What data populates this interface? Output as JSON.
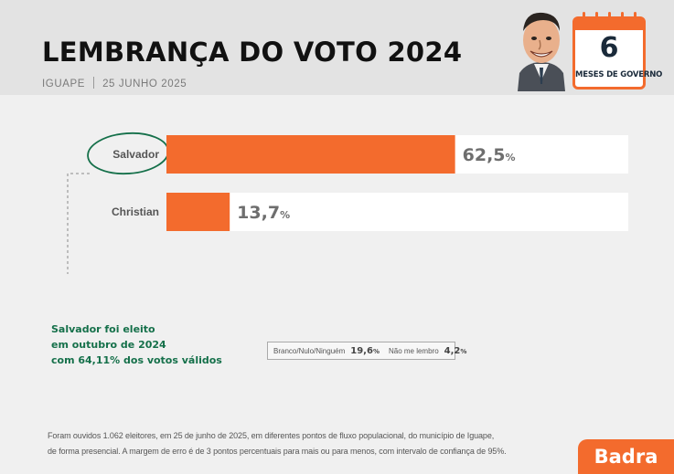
{
  "header": {
    "title": "LEMBRANÇA DO VOTO 2024",
    "location": "IGUAPE",
    "date": "25 JUNHO 2025"
  },
  "calendar": {
    "number": "6",
    "label": "MESES DE GOVERNO"
  },
  "chart_data": {
    "type": "bar",
    "orientation": "horizontal",
    "categories": [
      "Salvador",
      "Christian"
    ],
    "values": [
      62.5,
      13.7
    ],
    "value_labels": [
      "62,5",
      "13,7"
    ],
    "unit": "%",
    "xlim": [
      0,
      100
    ],
    "bar_color": "#f36b2d",
    "track_color": "#ffffff",
    "highlight": "Salvador"
  },
  "annotation": {
    "lines": [
      "Salvador foi eleito",
      "em outubro de 2024",
      "com 64,11% dos votos válidos"
    ],
    "color": "#15704a"
  },
  "others": [
    {
      "label": "Branco/Nulo/Ninguém",
      "value": "19,6",
      "unit": "%"
    },
    {
      "label": "Não me lembro",
      "value": "4,2",
      "unit": "%"
    }
  ],
  "footnote": {
    "line1": "Foram ouvidos 1.062 eleitores, em 25 de junho de 2025, em diferentes pontos de fluxo populacional, do município de Iguape,",
    "line2": "de forma presencial. A margem de erro é de 3 pontos percentuais para mais ou para menos, com intervalo de confiança de 95%."
  },
  "brand": {
    "name": "Badra",
    "color": "#f36b2d"
  }
}
